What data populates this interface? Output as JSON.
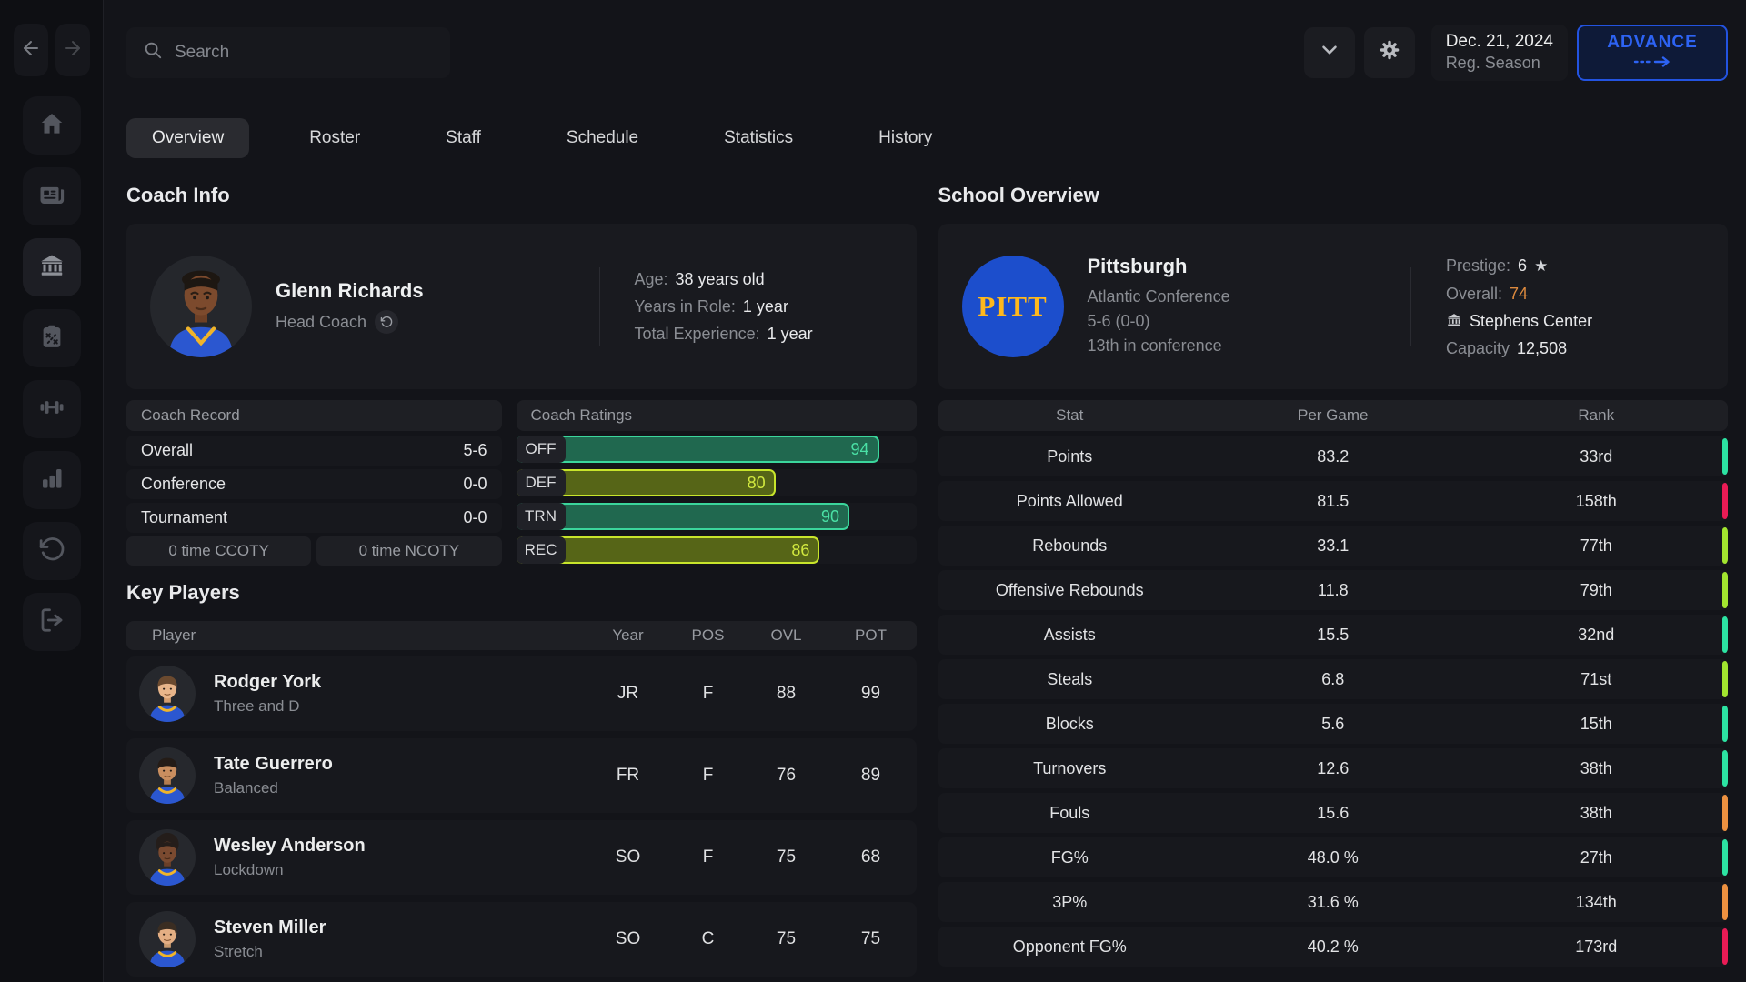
{
  "topbar": {
    "search_placeholder": "Search",
    "date": "Dec. 21, 2024",
    "season": "Reg. Season",
    "advance_label": "ADVANCE"
  },
  "tabs": {
    "active": "Overview",
    "items": [
      {
        "label": "Overview"
      },
      {
        "label": "Roster"
      },
      {
        "label": "Staff"
      },
      {
        "label": "Schedule"
      },
      {
        "label": "Statistics"
      },
      {
        "label": "History"
      }
    ]
  },
  "sidebar": {
    "icons": [
      "back-arrow",
      "forward-arrow",
      "home",
      "news",
      "school",
      "playbook",
      "training",
      "stats",
      "history",
      "exit"
    ]
  },
  "coach_info": {
    "section_title": "Coach Info",
    "name": "Glenn Richards",
    "role": "Head Coach",
    "details": [
      {
        "label": "Age:",
        "value": "38 years old"
      },
      {
        "label": "Years in Role:",
        "value": "1 year"
      },
      {
        "label": "Total Experience:",
        "value": "1 year"
      }
    ],
    "record": {
      "title": "Coach Record",
      "rows": [
        {
          "label": "Overall",
          "value": "5-6"
        },
        {
          "label": "Conference",
          "value": "0-0"
        },
        {
          "label": "Tournament",
          "value": "0-0"
        }
      ],
      "awards": [
        "0 time CCOTY",
        "0 time NCOTY"
      ]
    },
    "ratings": {
      "title": "Coach Ratings",
      "bars": [
        {
          "label": "OFF",
          "value": "94",
          "tier": "teal",
          "pct": 90.7
        },
        {
          "label": "DEF",
          "value": "80",
          "tier": "lime",
          "pct": 64.8
        },
        {
          "label": "TRN",
          "value": "90",
          "tier": "teal",
          "pct": 83.3
        },
        {
          "label": "REC",
          "value": "86",
          "tier": "lime",
          "pct": 75.9
        }
      ]
    }
  },
  "key_players": {
    "section_title": "Key Players",
    "columns": {
      "player": "Player",
      "year": "Year",
      "pos": "POS",
      "ovl": "OVL",
      "pot": "POT"
    },
    "players": [
      {
        "name": "Rodger York",
        "archetype": "Three and D",
        "year": "JR",
        "pos": "F",
        "ovl": "88",
        "pot": "99"
      },
      {
        "name": "Tate Guerrero",
        "archetype": "Balanced",
        "year": "FR",
        "pos": "F",
        "ovl": "76",
        "pot": "89"
      },
      {
        "name": "Wesley Anderson",
        "archetype": "Lockdown",
        "year": "SO",
        "pos": "F",
        "ovl": "75",
        "pot": "68"
      },
      {
        "name": "Steven Miller",
        "archetype": "Stretch",
        "year": "SO",
        "pos": "C",
        "ovl": "75",
        "pot": "75"
      }
    ]
  },
  "school_overview": {
    "section_title": "School Overview",
    "name": "Pittsburgh",
    "logo_text": "PITT",
    "conference": "Atlantic Conference",
    "record": "5-6 (0-0)",
    "standing": "13th in conference",
    "prestige_label": "Prestige:",
    "prestige_value": "6",
    "overall_label": "Overall:",
    "overall_value": "74",
    "arena": "Stephens Center",
    "capacity_label": "Capacity",
    "capacity_value": "12,508"
  },
  "team_stats": {
    "columns": {
      "stat": "Stat",
      "per_game": "Per Game",
      "rank": "Rank"
    },
    "rows": [
      {
        "stat": "Points",
        "per_game": "83.2",
        "rank": "33rd",
        "tier": "teal"
      },
      {
        "stat": "Points Allowed",
        "per_game": "81.5",
        "rank": "158th",
        "tier": "red"
      },
      {
        "stat": "Rebounds",
        "per_game": "33.1",
        "rank": "77th",
        "tier": "lime"
      },
      {
        "stat": "Offensive Rebounds",
        "per_game": "11.8",
        "rank": "79th",
        "tier": "lime"
      },
      {
        "stat": "Assists",
        "per_game": "15.5",
        "rank": "32nd",
        "tier": "teal"
      },
      {
        "stat": "Steals",
        "per_game": "6.8",
        "rank": "71st",
        "tier": "lime"
      },
      {
        "stat": "Blocks",
        "per_game": "5.6",
        "rank": "15th",
        "tier": "teal"
      },
      {
        "stat": "Turnovers",
        "per_game": "12.6",
        "rank": "38th",
        "tier": "teal"
      },
      {
        "stat": "Fouls",
        "per_game": "15.6",
        "rank": "38th",
        "tier": "orange"
      },
      {
        "stat": "FG%",
        "per_game": "48.0 %",
        "rank": "27th",
        "tier": "teal"
      },
      {
        "stat": "3P%",
        "per_game": "31.6 %",
        "rank": "134th",
        "tier": "orange"
      },
      {
        "stat": "Opponent FG%",
        "per_game": "40.2 %",
        "rank": "173rd",
        "tier": "red"
      }
    ]
  },
  "colors": {
    "tier_teal": "#2ce3a2",
    "tier_red": "#ea1b55",
    "tier_lime": "#a2e52f",
    "tier_orange": "#ed9140",
    "accent_blue": "#2d63f3",
    "overall_orange": "#dd8a3e",
    "pitt_blue": "#1c4ecc",
    "pitt_gold": "#ffb81c"
  }
}
